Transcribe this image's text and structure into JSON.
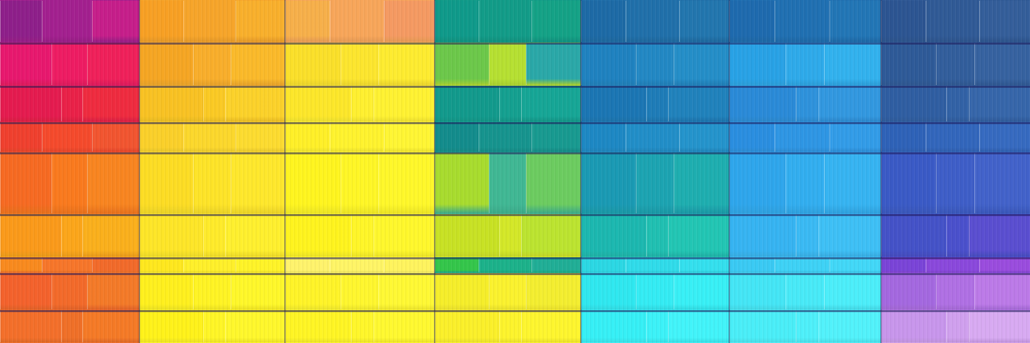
{
  "artwork": {
    "columns": [
      {
        "name": "magenta-red-orange",
        "bands": [
          [
            "#8e1f8a",
            "#a3208f",
            "#c61e8a"
          ],
          [
            "#e8186e",
            "#ee1c63",
            "#f0205a"
          ],
          [
            "#e51b4f",
            "#ea2148",
            "#ef2b3f"
          ],
          [
            "#f0402e",
            "#f54a2c",
            "#f25530"
          ],
          [
            "#f76a22",
            "#fa7a1e",
            "#f98520"
          ],
          [
            "#fb9a1a",
            "#fca61a",
            "#fbb01c"
          ],
          [
            "#f98a1e",
            "#f7762a",
            "#f26a2a"
          ],
          [
            "#f4622c",
            "#f36a2a",
            "#f47a28"
          ],
          [
            "#f46f2a",
            "#f07028",
            "#f57a26"
          ]
        ]
      },
      {
        "name": "orange",
        "bands": [
          [
            "#f8a024",
            "#f7a52a",
            "#f9b02c"
          ],
          [
            "#f6a623",
            "#f9ae2b",
            "#fbba2a"
          ],
          [
            "#f9c223",
            "#fbca24",
            "#fcd22a"
          ],
          [
            "#fbd02a",
            "#fcd82c",
            "#fddc30"
          ],
          [
            "#fddd24",
            "#fee428",
            "#ffe82c"
          ],
          [
            "#fee628",
            "#ffeb2a",
            "#fff02e"
          ],
          [
            "#ffe81e",
            "#fff02a",
            "#fff428"
          ],
          [
            "#fff01e",
            "#fff424",
            "#fff82a"
          ],
          [
            "#fff21a",
            "#fff626",
            "#fff82c"
          ]
        ]
      },
      {
        "name": "yellow",
        "bands": [
          [
            "#f7b04a",
            "#f8a65a",
            "#f59a62"
          ],
          [
            "#fbe02a",
            "#fde62e",
            "#feec30"
          ],
          [
            "#fde72a",
            "#fff030",
            "#fff232"
          ],
          [
            "#fff028",
            "#fff32e",
            "#fff634"
          ],
          [
            "#fff51f",
            "#fff726",
            "#fff82a"
          ],
          [
            "#fff41e",
            "#fff628",
            "#fff82c"
          ],
          [
            "#fff36c",
            "#fff566",
            "#fff45e"
          ],
          [
            "#fff428",
            "#fff72e",
            "#fff934"
          ],
          [
            "#fff524",
            "#fff72a",
            "#fff930"
          ]
        ]
      },
      {
        "name": "green-teal",
        "bands": [
          [
            "#0f9a8a",
            "#129c88",
            "#14a286"
          ],
          [
            "#6cc84a",
            "#b6e032",
            "#2aa8a8"
          ],
          [
            "#129a8c",
            "#14a090",
            "#16a696"
          ],
          [
            "#138c8c",
            "#16948e",
            "#189a90"
          ],
          [
            "#a8dc2e",
            "#40b894",
            "#6ccc60"
          ],
          [
            "#c8e224",
            "#d4e828",
            "#bce430"
          ],
          [
            "#34c64a",
            "#1cb28a",
            "#20ae96"
          ],
          [
            "#f6ee2a",
            "#fbf22e",
            "#f4ee30"
          ],
          [
            "#fbf02a",
            "#fdf42c",
            "#fef62e"
          ]
        ]
      },
      {
        "name": "blue-teal",
        "bands": [
          [
            "#1d6aa6",
            "#2070aa",
            "#2276ae"
          ],
          [
            "#1f82c0",
            "#2288c4",
            "#248ec8"
          ],
          [
            "#1b76b4",
            "#1e7cb8",
            "#2082bc"
          ],
          [
            "#1d88c4",
            "#218ec8",
            "#2494cc"
          ],
          [
            "#1a9ab4",
            "#1ca4b2",
            "#1eaeb0"
          ],
          [
            "#1cb8b0",
            "#20c0b2",
            "#22c6b4"
          ],
          [
            "#2bd8e4",
            "#30dcea",
            "#34e0ee"
          ],
          [
            "#2fe8f0",
            "#34ecf4",
            "#38f0f6"
          ],
          [
            "#36f0f6",
            "#3cf2f8",
            "#42f4fa"
          ]
        ]
      },
      {
        "name": "sky-blue",
        "bands": [
          [
            "#1e6aae",
            "#2070b2",
            "#2276b6"
          ],
          [
            "#28a2e6",
            "#2eaaea",
            "#32b2ee"
          ],
          [
            "#2a8ad8",
            "#2e92dc",
            "#3298e0"
          ],
          [
            "#2a8ee0",
            "#2e96e4",
            "#329ce8"
          ],
          [
            "#2ea6ec",
            "#32aef0",
            "#36b4f2"
          ],
          [
            "#36b4f2",
            "#3abaf4",
            "#3ec0f6"
          ],
          [
            "#3acaf4",
            "#3ed2f6",
            "#42d8f8"
          ],
          [
            "#44e6f6",
            "#48eaf8",
            "#4ceefa"
          ],
          [
            "#4aeef8",
            "#4ef0fa",
            "#52f2fb"
          ]
        ]
      },
      {
        "name": "indigo-violet",
        "bands": [
          [
            "#2c5592",
            "#305a96",
            "#345e9a"
          ],
          [
            "#2e5a98",
            "#325e9c",
            "#3662a0"
          ],
          [
            "#2f5ea2",
            "#3262a6",
            "#3666aa"
          ],
          [
            "#2e62b8",
            "#3266bc",
            "#366ac0"
          ],
          [
            "#3a5ac6",
            "#3e5ec8",
            "#4262ca"
          ],
          [
            "#4452c8",
            "#4a50cc",
            "#5a4ed0"
          ],
          [
            "#7a44d8",
            "#8a48dc",
            "#9a4cde"
          ],
          [
            "#a468e0",
            "#b070e4",
            "#bc7ae8"
          ],
          [
            "#c896ec",
            "#d0a0ee",
            "#d8aaf2"
          ]
        ]
      }
    ]
  }
}
